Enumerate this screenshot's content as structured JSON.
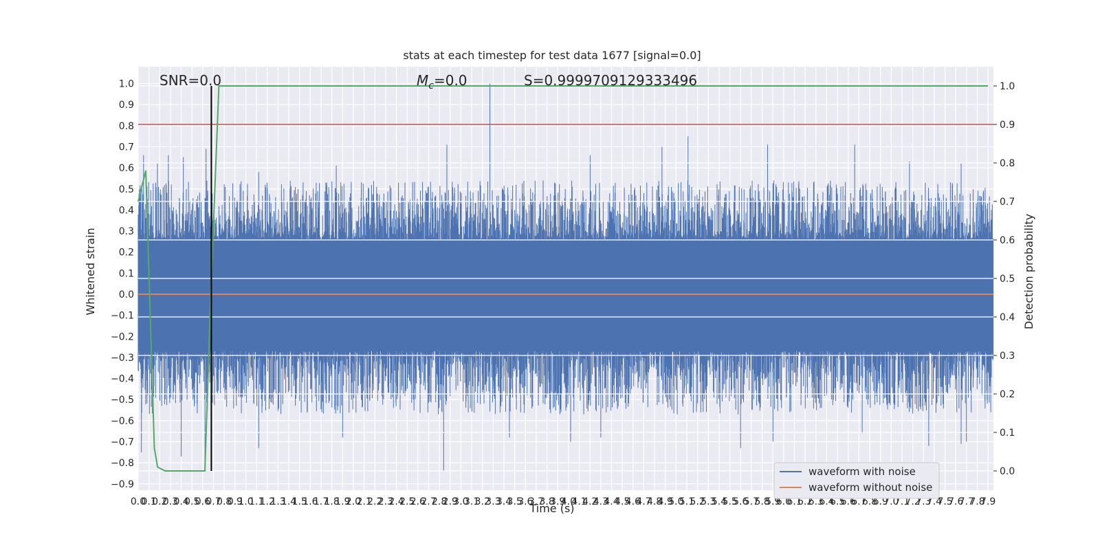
{
  "chart_data": {
    "type": "line",
    "title": "stats at each timestep for test data 1677 [signal=0.0]",
    "xlabel": "Time (s)",
    "ylabel": "Whitened strain",
    "y2label": "Detection probability",
    "xlim": [
      0.0,
      7.95
    ],
    "ylim": [
      -0.93,
      1.08
    ],
    "y2lim": [
      -0.05,
      1.05
    ],
    "grid": true,
    "legend_position": "lower-right",
    "x_ticks": [
      "0.0",
      "0.1",
      "0.2",
      "0.3",
      "0.4",
      "0.5",
      "0.6",
      "0.7",
      "0.8",
      "0.9",
      "1.0",
      "1.1",
      "1.2",
      "1.3",
      "1.4",
      "1.5",
      "1.6",
      "1.7",
      "1.8",
      "1.9",
      "2.0",
      "2.1",
      "2.2",
      "2.3",
      "2.4",
      "2.5",
      "2.6",
      "2.7",
      "2.8",
      "2.9",
      "3.0",
      "3.1",
      "3.2",
      "3.3",
      "3.4",
      "3.5",
      "3.6",
      "3.7",
      "3.8",
      "3.9",
      "4.0",
      "4.1",
      "4.2",
      "4.3",
      "4.4",
      "4.5",
      "4.6",
      "4.7",
      "4.8",
      "4.9",
      "5.0",
      "5.1",
      "5.2",
      "5.3",
      "5.4",
      "5.5",
      "5.6",
      "5.7",
      "5.8",
      "5.9",
      "6.0",
      "6.1",
      "6.2",
      "6.3",
      "6.4",
      "6.5",
      "6.6",
      "6.7",
      "6.8",
      "6.9",
      "7.0",
      "7.1",
      "7.2",
      "7.3",
      "7.4",
      "7.5",
      "7.6",
      "7.7",
      "7.8",
      "7.9"
    ],
    "y_ticks": [
      "1.0",
      "0.9",
      "0.8",
      "0.7",
      "0.6",
      "0.5",
      "0.4",
      "0.3",
      "0.2",
      "0.1",
      "0.0",
      "−0.1",
      "−0.2",
      "−0.3",
      "−0.4",
      "−0.5",
      "−0.6",
      "−0.7",
      "−0.8",
      "−0.9"
    ],
    "y2_ticks": [
      "1.0",
      "0.9",
      "0.8",
      "0.7",
      "0.6",
      "0.5",
      "0.4",
      "0.3",
      "0.2",
      "0.1",
      "0.0"
    ],
    "annotations": {
      "snr": "SNR=0.0",
      "mc_symbol": "M",
      "mc_sub": "c",
      "mc_value": "=0.0",
      "score": "S=0.9999709129333496"
    },
    "series": [
      {
        "name": "waveform with noise",
        "color": "#4c72b0",
        "description": "dense whitened strain noise, envelope roughly ±0.3, peaks up to 1.0",
        "spikes_pos": [
          [
            0.05,
            0.66
          ],
          [
            0.18,
            0.62
          ],
          [
            0.28,
            0.66
          ],
          [
            0.42,
            0.65
          ],
          [
            0.63,
            0.69
          ],
          [
            1.12,
            0.58
          ],
          [
            1.84,
            0.61
          ],
          [
            2.87,
            0.71
          ],
          [
            3.27,
            1.0
          ],
          [
            4.2,
            0.66
          ],
          [
            4.87,
            0.7
          ],
          [
            5.11,
            0.75
          ],
          [
            5.85,
            0.71
          ],
          [
            6.66,
            0.71
          ],
          [
            7.17,
            0.63
          ],
          [
            7.65,
            0.62
          ]
        ],
        "spikes_neg": [
          [
            0.03,
            -0.75
          ],
          [
            0.4,
            -0.77
          ],
          [
            0.62,
            -0.8
          ],
          [
            1.12,
            -0.73
          ],
          [
            1.9,
            -0.68
          ],
          [
            2.84,
            -0.84
          ],
          [
            3.45,
            -0.68
          ],
          [
            4.02,
            -0.7
          ],
          [
            4.3,
            -0.68
          ],
          [
            5.6,
            -0.73
          ],
          [
            5.9,
            -0.7
          ],
          [
            6.73,
            -0.66
          ],
          [
            7.35,
            -0.72
          ],
          [
            7.65,
            -0.71
          ],
          [
            7.7,
            -0.7
          ]
        ]
      },
      {
        "name": "waveform without noise",
        "color": "#dd8452",
        "y": 0.0
      },
      {
        "name": "Detection probability",
        "color": "#55a868",
        "axis": "right",
        "x": [
          0.0,
          0.07,
          0.15,
          0.18,
          0.25,
          0.62,
          0.68,
          0.75,
          7.9
        ],
        "y": [
          0.7,
          0.78,
          0.06,
          0.01,
          0.0,
          0.0,
          0.5,
          1.0,
          1.0
        ]
      }
    ],
    "reference_lines": {
      "threshold_right_axis": 0.9,
      "threshold_color": "#c44e52",
      "marker_time": 0.68,
      "marker_color": "#000000"
    }
  }
}
